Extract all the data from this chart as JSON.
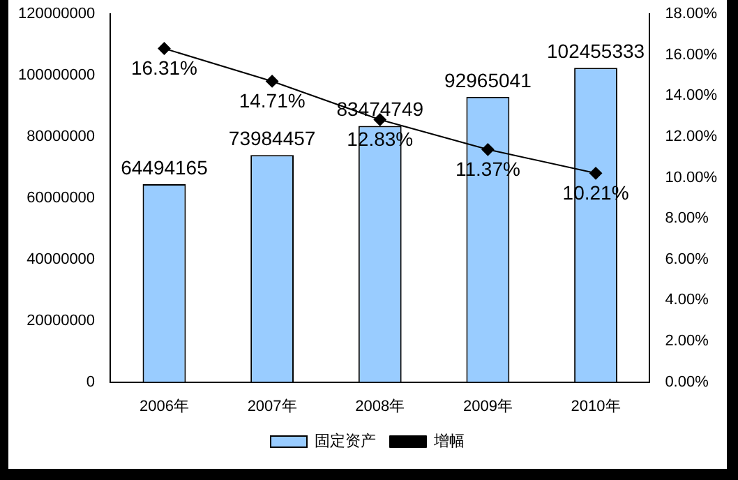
{
  "chart_data": {
    "type": "bar",
    "categories": [
      "2006年",
      "2007年",
      "2008年",
      "2009年",
      "2010年"
    ],
    "series": [
      {
        "name": "固定资产",
        "color": "#99ccff",
        "values": [
          64494165,
          73984457,
          83474749,
          92965041,
          102455333
        ],
        "value_labels": [
          "64494165",
          "73984457",
          "83474749",
          "92965041",
          "102455333"
        ]
      },
      {
        "name": "增幅",
        "type": "line",
        "axis": "y2",
        "color": "#000000",
        "values": [
          16.31,
          14.71,
          12.83,
          11.37,
          10.21
        ],
        "value_labels": [
          "16.31%",
          "14.71%",
          "12.83%",
          "11.37%",
          "10.21%"
        ]
      }
    ],
    "ylim": [
      0,
      120000000
    ],
    "yticks": [
      0,
      20000000,
      40000000,
      60000000,
      80000000,
      100000000,
      120000000
    ],
    "y2lim": [
      0,
      18
    ],
    "y2ticks": [
      {
        "value": 0,
        "label": "0.00%"
      },
      {
        "value": 2,
        "label": "2.00%"
      },
      {
        "value": 4,
        "label": "4.00%"
      },
      {
        "value": 6,
        "label": "6.00%"
      },
      {
        "value": 8,
        "label": "8.00%"
      },
      {
        "value": 10,
        "label": "10.00%"
      },
      {
        "value": 12,
        "label": "12.00%"
      },
      {
        "value": 14,
        "label": "14.00%"
      },
      {
        "value": 16,
        "label": "16.00%"
      },
      {
        "value": 18,
        "label": "18.00%"
      }
    ],
    "marker": "diamond",
    "line_style": "solid",
    "legend": "bottom",
    "grid": false
  }
}
